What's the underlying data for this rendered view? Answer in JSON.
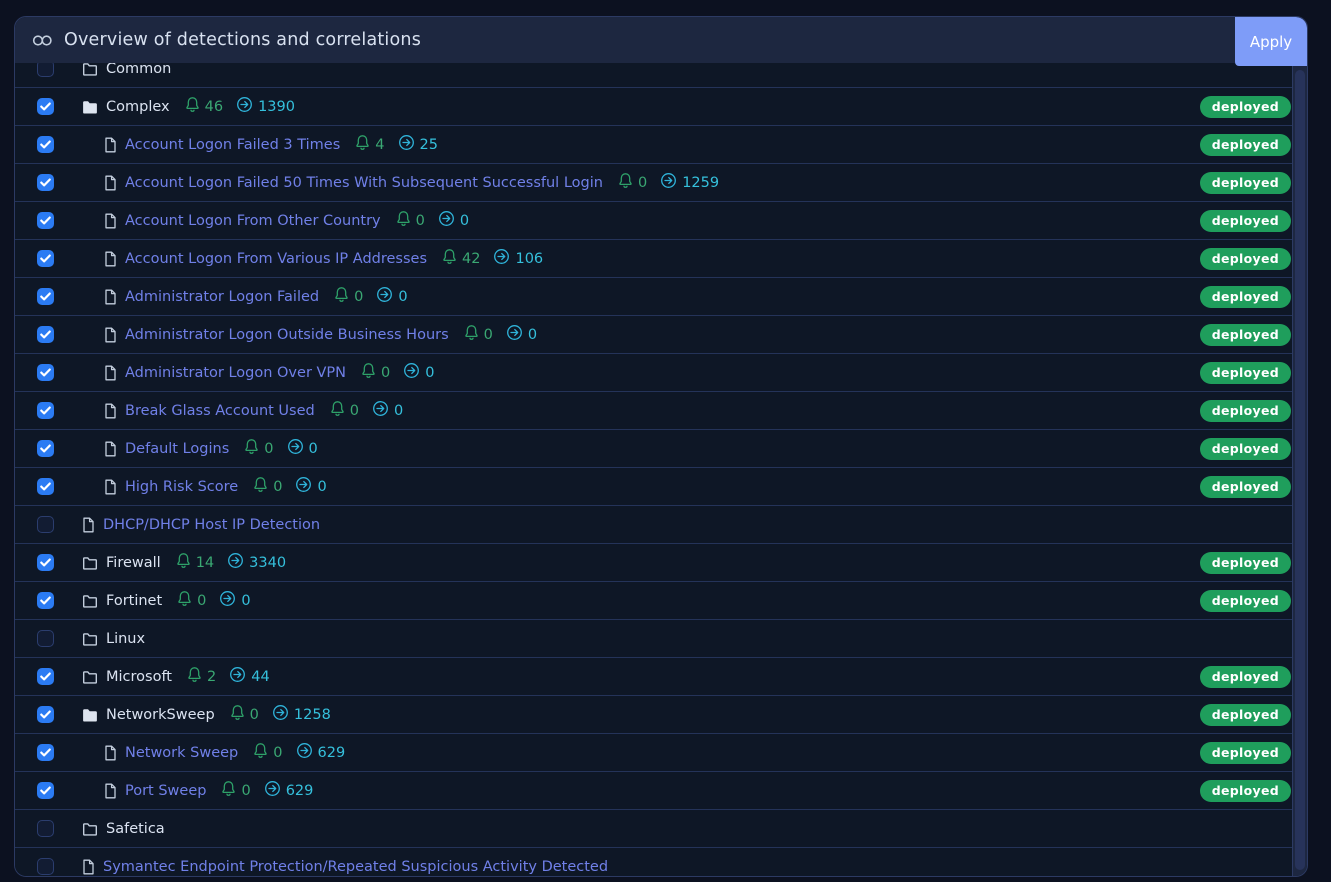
{
  "header": {
    "title": "Overview of detections and correlations",
    "apply_label": "Apply"
  },
  "badge_label": "deployed",
  "icons": {
    "header_left": "link-icon",
    "alerts": "bell-icon",
    "correlations": "arrow-right-circle-icon",
    "group": "folder-icon",
    "group_expanded": "folder-filled-icon",
    "detection": "file-icon",
    "checked": "checkmark-icon"
  },
  "colors": {
    "page_bg": "#0c1120",
    "panel_bg": "#0e1726",
    "header_bg": "#1d2740",
    "separator": "#243359",
    "panel_border": "#2c3a63",
    "apply_button": "#7e9cf8",
    "badge_green": "#1f9e5c",
    "checkbox_checked": "#2b7bf3",
    "alerts_green": "#3aa873",
    "correlations_cyan": "#35c0dc",
    "folder_label": "#dbe3f1",
    "file_label": "#7080e8"
  },
  "rows": [
    {
      "label": "Common",
      "kind": "folder",
      "level": 0,
      "checked": false,
      "alerts": null,
      "correlations": null,
      "deployed": false
    },
    {
      "label": "Complex",
      "kind": "folder-open",
      "level": 0,
      "checked": true,
      "alerts": 46,
      "correlations": 1390,
      "deployed": true
    },
    {
      "label": "Account Logon Failed 3 Times",
      "kind": "file",
      "level": 1,
      "checked": true,
      "alerts": 4,
      "correlations": 25,
      "deployed": true
    },
    {
      "label": "Account Logon Failed 50 Times With Subsequent Successful Login",
      "kind": "file",
      "level": 1,
      "checked": true,
      "alerts": 0,
      "correlations": 1259,
      "deployed": true
    },
    {
      "label": "Account Logon From Other Country",
      "kind": "file",
      "level": 1,
      "checked": true,
      "alerts": 0,
      "correlations": 0,
      "deployed": true
    },
    {
      "label": "Account Logon From Various IP Addresses",
      "kind": "file",
      "level": 1,
      "checked": true,
      "alerts": 42,
      "correlations": 106,
      "deployed": true
    },
    {
      "label": "Administrator Logon Failed",
      "kind": "file",
      "level": 1,
      "checked": true,
      "alerts": 0,
      "correlations": 0,
      "deployed": true
    },
    {
      "label": "Administrator Logon Outside Business Hours",
      "kind": "file",
      "level": 1,
      "checked": true,
      "alerts": 0,
      "correlations": 0,
      "deployed": true
    },
    {
      "label": "Administrator Logon Over VPN",
      "kind": "file",
      "level": 1,
      "checked": true,
      "alerts": 0,
      "correlations": 0,
      "deployed": true
    },
    {
      "label": "Break Glass Account Used",
      "kind": "file",
      "level": 1,
      "checked": true,
      "alerts": 0,
      "correlations": 0,
      "deployed": true
    },
    {
      "label": "Default Logins",
      "kind": "file",
      "level": 1,
      "checked": true,
      "alerts": 0,
      "correlations": 0,
      "deployed": true
    },
    {
      "label": "High Risk Score",
      "kind": "file",
      "level": 1,
      "checked": true,
      "alerts": 0,
      "correlations": 0,
      "deployed": true
    },
    {
      "label": "DHCP/DHCP Host IP Detection",
      "kind": "file",
      "level": 0,
      "checked": false,
      "alerts": null,
      "correlations": null,
      "deployed": false
    },
    {
      "label": "Firewall",
      "kind": "folder",
      "level": 0,
      "checked": true,
      "alerts": 14,
      "correlations": 3340,
      "deployed": true
    },
    {
      "label": "Fortinet",
      "kind": "folder",
      "level": 0,
      "checked": true,
      "alerts": 0,
      "correlations": 0,
      "deployed": true
    },
    {
      "label": "Linux",
      "kind": "folder",
      "level": 0,
      "checked": false,
      "alerts": null,
      "correlations": null,
      "deployed": false
    },
    {
      "label": "Microsoft",
      "kind": "folder",
      "level": 0,
      "checked": true,
      "alerts": 2,
      "correlations": 44,
      "deployed": true
    },
    {
      "label": "NetworkSweep",
      "kind": "folder-open",
      "level": 0,
      "checked": true,
      "alerts": 0,
      "correlations": 1258,
      "deployed": true
    },
    {
      "label": "Network Sweep",
      "kind": "file",
      "level": 1,
      "checked": true,
      "alerts": 0,
      "correlations": 629,
      "deployed": true
    },
    {
      "label": "Port Sweep",
      "kind": "file",
      "level": 1,
      "checked": true,
      "alerts": 0,
      "correlations": 629,
      "deployed": true
    },
    {
      "label": "Safetica",
      "kind": "folder",
      "level": 0,
      "checked": false,
      "alerts": null,
      "correlations": null,
      "deployed": false
    },
    {
      "label": "Symantec Endpoint Protection/Repeated Suspicious Activity Detected",
      "kind": "file",
      "level": 0,
      "checked": false,
      "alerts": null,
      "correlations": null,
      "deployed": false
    }
  ]
}
